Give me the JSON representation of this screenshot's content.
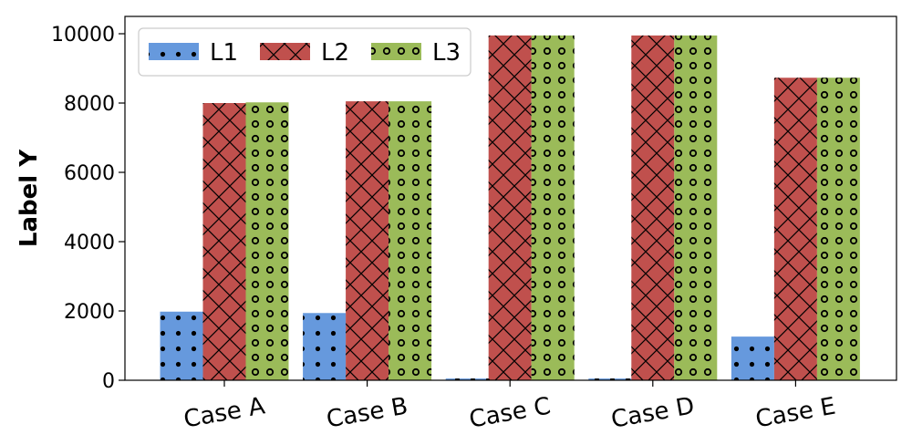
{
  "chart_data": {
    "type": "bar",
    "title": "",
    "xlabel": "",
    "ylabel": "Label Y",
    "categories": [
      "Case A",
      "Case B",
      "Case C",
      "Case D",
      "Case E"
    ],
    "series": [
      {
        "name": "L1",
        "color": "#6699dd",
        "pattern": "dots",
        "values": [
          1980,
          1940,
          50,
          50,
          1260
        ]
      },
      {
        "name": "L2",
        "color": "#c0504d",
        "pattern": "crosshatch",
        "values": [
          8000,
          8050,
          9950,
          9950,
          8730
        ]
      },
      {
        "name": "L3",
        "color": "#9bbb59",
        "pattern": "circles",
        "values": [
          8020,
          8050,
          9950,
          9950,
          8730
        ]
      }
    ],
    "ylim": [
      0,
      10500
    ],
    "yticks": [
      0,
      2000,
      4000,
      6000,
      8000,
      10000
    ],
    "grid": false,
    "legend": {
      "position": "top-left",
      "orientation": "horizontal"
    }
  }
}
